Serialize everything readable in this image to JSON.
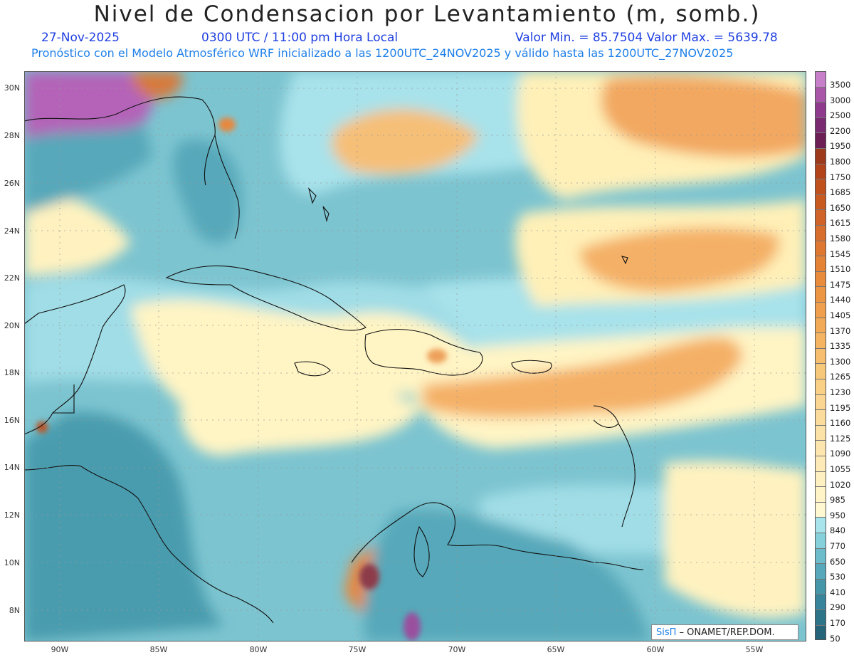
{
  "header": {
    "title": "Nivel de Condensacion por Levantamiento (m, somb.)",
    "date": "27-Nov-2025",
    "time": "0300 UTC / 11:00 pm Hora Local",
    "minmax": "Valor Min. = 85.7504  Valor Max. = 5639.78",
    "model_info": "Pronóstico con el Modelo Atmosférico WRF inicializado a las 1200UTC_24NOV2025 y válido hasta las  1200UTC_27NOV2025"
  },
  "axes": {
    "lat_labels": [
      "30N",
      "28N",
      "26N",
      "24N",
      "22N",
      "20N",
      "18N",
      "16N",
      "14N",
      "12N",
      "10N",
      "8N"
    ],
    "lon_labels": [
      "90W",
      "85W",
      "80W",
      "75W",
      "70W",
      "65W",
      "60W",
      "55W"
    ]
  },
  "colorbar": {
    "levels": [
      "3500",
      "3000",
      "2500",
      "2200",
      "1950",
      "1800",
      "1750",
      "1685",
      "1650",
      "1615",
      "1580",
      "1545",
      "1510",
      "1475",
      "1440",
      "1405",
      "1370",
      "1335",
      "1300",
      "1265",
      "1230",
      "1195",
      "1160",
      "1125",
      "1090",
      "1055",
      "1020",
      "985",
      "950",
      "840",
      "770",
      "650",
      "530",
      "410",
      "290",
      "170",
      "50"
    ],
    "colors": [
      "#c77fc9",
      "#a956a9",
      "#8f3a8c",
      "#7a2a70",
      "#6b1f55",
      "#9e3a1c",
      "#b3441a",
      "#c0501c",
      "#c85a20",
      "#d06428",
      "#d86e2c",
      "#de7830",
      "#e48236",
      "#e88c3c",
      "#ec9644",
      "#f0a04c",
      "#f2aa56",
      "#f4b462",
      "#f6be6e",
      "#f8c87a",
      "#f9d086",
      "#fad692",
      "#fbdc9c",
      "#fce2a6",
      "#fde6ae",
      "#feeab6",
      "#fef0c0",
      "#fff4c8",
      "#fff8d0",
      "#a8e4ec",
      "#86d0dc",
      "#6cbccc",
      "#56a8ba",
      "#4696aa",
      "#38849a",
      "#2e7488",
      "#25657a"
    ]
  },
  "credit": {
    "brand": "SisΠ",
    "text": " – ONAMET/REP.DOM."
  },
  "map_fields": [
    {
      "name": "bg-ocean",
      "value": "650"
    },
    {
      "name": "subtropical-dry",
      "value": "1230"
    },
    {
      "name": "gulf-usa-high",
      "value": "3000"
    },
    {
      "name": "colombia-high",
      "value": "2200"
    }
  ]
}
